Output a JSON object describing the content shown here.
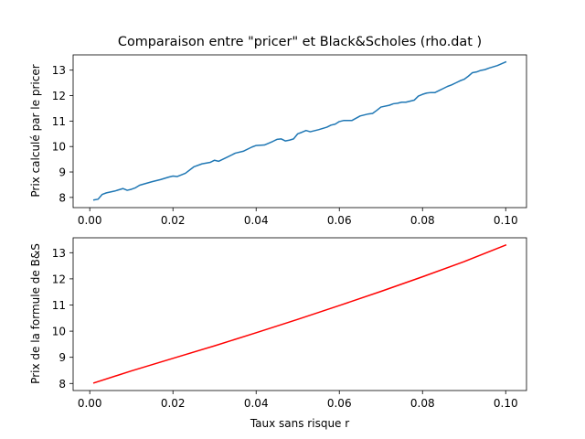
{
  "chart_data": [
    {
      "type": "line",
      "title": "Comparaison entre \"pricer\" et Black&Scholes (rho.dat )",
      "xlabel": "",
      "ylabel": "Prix calculé par le pricer",
      "xlim": [
        -0.004,
        0.105
      ],
      "ylim": [
        7.6,
        13.6
      ],
      "xticks": [
        0.0,
        0.02,
        0.04,
        0.06,
        0.08,
        0.1
      ],
      "xtick_labels": [
        "0.00",
        "0.02",
        "0.04",
        "0.06",
        "0.08",
        "0.10"
      ],
      "yticks": [
        8,
        9,
        10,
        11,
        12,
        13
      ],
      "ytick_labels": [
        "8",
        "9",
        "10",
        "11",
        "12",
        "13"
      ],
      "grid": false,
      "series": [
        {
          "color": "#1f77b4",
          "x": [
            0.001,
            0.002,
            0.003,
            0.004,
            0.006,
            0.008,
            0.009,
            0.01,
            0.011,
            0.012,
            0.015,
            0.017,
            0.019,
            0.02,
            0.021,
            0.023,
            0.025,
            0.027,
            0.029,
            0.03,
            0.031,
            0.033,
            0.035,
            0.037,
            0.039,
            0.04,
            0.042,
            0.044,
            0.045,
            0.046,
            0.047,
            0.048,
            0.049,
            0.05,
            0.051,
            0.052,
            0.053,
            0.055,
            0.057,
            0.058,
            0.059,
            0.06,
            0.061,
            0.063,
            0.065,
            0.067,
            0.068,
            0.069,
            0.07,
            0.072,
            0.073,
            0.074,
            0.075,
            0.076,
            0.077,
            0.078,
            0.079,
            0.08,
            0.081,
            0.082,
            0.083,
            0.084,
            0.085,
            0.086,
            0.087,
            0.088,
            0.089,
            0.09,
            0.091,
            0.092,
            0.093,
            0.094,
            0.095,
            0.096,
            0.098,
            0.1
          ],
          "y": [
            7.9,
            7.93,
            8.12,
            8.18,
            8.25,
            8.35,
            8.28,
            8.32,
            8.38,
            8.48,
            8.62,
            8.7,
            8.8,
            8.84,
            8.82,
            8.95,
            9.2,
            9.32,
            9.38,
            9.46,
            9.42,
            9.58,
            9.74,
            9.82,
            9.98,
            10.04,
            10.06,
            10.2,
            10.28,
            10.3,
            10.22,
            10.25,
            10.3,
            10.5,
            10.56,
            10.63,
            10.58,
            10.66,
            10.76,
            10.84,
            10.88,
            10.98,
            11.02,
            11.02,
            11.2,
            11.28,
            11.3,
            11.42,
            11.55,
            11.62,
            11.68,
            11.7,
            11.74,
            11.74,
            11.78,
            11.82,
            11.98,
            12.05,
            12.1,
            12.12,
            12.12,
            12.2,
            12.28,
            12.36,
            12.42,
            12.5,
            12.58,
            12.64,
            12.76,
            12.9,
            12.93,
            12.99,
            13.02,
            13.08,
            13.18,
            13.32
          ]
        }
      ]
    },
    {
      "type": "line",
      "title": "",
      "xlabel": "Taux sans risque r",
      "ylabel": "Prix de la formule de B&S",
      "xlim": [
        -0.004,
        0.105
      ],
      "ylim": [
        7.73,
        13.57
      ],
      "xticks": [
        0.0,
        0.02,
        0.04,
        0.06,
        0.08,
        0.1
      ],
      "xtick_labels": [
        "0.00",
        "0.02",
        "0.04",
        "0.06",
        "0.08",
        "0.10"
      ],
      "yticks": [
        8,
        9,
        10,
        11,
        12,
        13
      ],
      "ytick_labels": [
        "8",
        "9",
        "10",
        "11",
        "12",
        "13"
      ],
      "grid": false,
      "series": [
        {
          "color": "#ff0000",
          "x": [
            0.001,
            0.01,
            0.02,
            0.03,
            0.04,
            0.05,
            0.06,
            0.07,
            0.08,
            0.09,
            0.1
          ],
          "y": [
            8.02,
            8.48,
            8.96,
            9.44,
            9.94,
            10.45,
            10.98,
            11.52,
            12.08,
            12.66,
            13.29
          ]
        }
      ]
    }
  ]
}
